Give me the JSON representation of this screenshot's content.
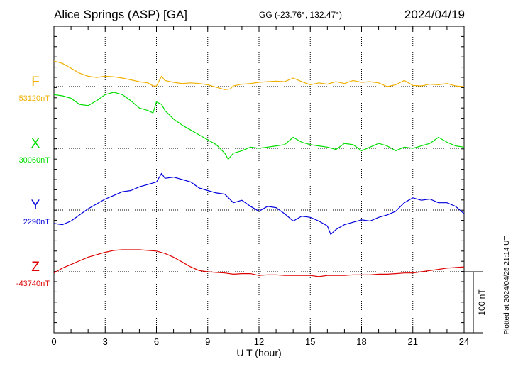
{
  "header": {
    "station": "Alice Springs (ASP)  [GA]",
    "coords": "GG (-23.76°, 132.47°)",
    "date": "2024/04/19"
  },
  "footer_note": "Plotted at 2024/04/25 21:14 UT",
  "scale_label": "100 nT",
  "chart_data": {
    "type": "line",
    "xlabel": "U T (hour)",
    "ylabel": "",
    "title": "",
    "xlim": [
      0,
      24
    ],
    "x_ticks": [
      "0",
      "3",
      "6",
      "9",
      "12",
      "15",
      "18",
      "21",
      "24"
    ],
    "grid": true,
    "scale_bar_nT": 100,
    "series": [
      {
        "name": "F",
        "baseline_label": "53120nT",
        "color": "#f0b000",
        "x": [
          0,
          0.5,
          1,
          1.5,
          2,
          2.5,
          3,
          3.5,
          4,
          4.5,
          5,
          5.5,
          5.8,
          6,
          6.3,
          6.5,
          7,
          7.5,
          8,
          8.5,
          9,
          9.5,
          10,
          10.3,
          10.5,
          11,
          11.5,
          12,
          12.5,
          13,
          13.5,
          14,
          14.5,
          15,
          15.5,
          16,
          16.5,
          17,
          17.5,
          18,
          18.5,
          19,
          19.5,
          20,
          20.5,
          21,
          21.5,
          22,
          22.5,
          23,
          23.5,
          24
        ],
        "values": [
          42,
          38,
          30,
          22,
          17,
          15,
          17,
          16,
          14,
          11,
          8,
          6,
          1,
          1,
          17,
          10,
          7,
          5,
          6,
          5,
          3,
          -1,
          -5,
          -4,
          1,
          4,
          5,
          7,
          8,
          9,
          8,
          14,
          8,
          3,
          6,
          4,
          8,
          5,
          10,
          7,
          8,
          6,
          0,
          3,
          10,
          2,
          1,
          4,
          3,
          5,
          1,
          0
        ]
      },
      {
        "name": "X",
        "baseline_label": "30060nT",
        "color": "#00dd00",
        "x": [
          0,
          0.5,
          1,
          1.5,
          2,
          2.5,
          3,
          3.5,
          4,
          4.5,
          5,
          5.5,
          5.8,
          6,
          6.3,
          6.5,
          7,
          7.5,
          8,
          8.5,
          9,
          9.5,
          10,
          10.2,
          10.5,
          11,
          11.5,
          12,
          12.5,
          13,
          13.5,
          14,
          14.5,
          15,
          15.5,
          16,
          16.5,
          17,
          17.5,
          18,
          18.5,
          19,
          19.5,
          20,
          20.5,
          21,
          21.5,
          22,
          22.5,
          23,
          23.5,
          24
        ],
        "values": [
          88,
          86,
          82,
          72,
          70,
          78,
          88,
          92,
          88,
          78,
          66,
          62,
          58,
          76,
          72,
          62,
          48,
          38,
          30,
          22,
          14,
          6,
          -8,
          -18,
          -8,
          -4,
          2,
          0,
          2,
          4,
          6,
          18,
          10,
          6,
          4,
          2,
          -2,
          8,
          6,
          -4,
          2,
          8,
          4,
          -4,
          2,
          0,
          4,
          8,
          18,
          10,
          4,
          2
        ]
      },
      {
        "name": "Y",
        "baseline_label": "2290nT",
        "color": "#0000dd",
        "x": [
          0,
          0.5,
          1,
          1.5,
          2,
          2.5,
          3,
          3.5,
          4,
          4.5,
          5,
          5.5,
          6,
          6.3,
          6.5,
          7,
          7.5,
          8,
          8.5,
          9,
          9.5,
          10,
          10.5,
          11,
          11.5,
          12,
          12.5,
          13,
          13.5,
          14,
          14.5,
          15,
          15.5,
          16,
          16.2,
          16.5,
          17,
          17.5,
          18,
          18.5,
          19,
          19.5,
          20,
          20.5,
          21,
          21.5,
          22,
          22.5,
          23,
          23.5,
          24
        ],
        "values": [
          -22,
          -24,
          -18,
          -8,
          2,
          10,
          18,
          24,
          30,
          32,
          38,
          42,
          46,
          60,
          52,
          54,
          50,
          46,
          36,
          32,
          28,
          26,
          12,
          16,
          6,
          -2,
          6,
          4,
          -6,
          -18,
          -10,
          -12,
          -18,
          -26,
          -40,
          -32,
          -24,
          -20,
          -16,
          -18,
          -12,
          -8,
          -2,
          12,
          20,
          16,
          18,
          12,
          12,
          6,
          -6
        ]
      },
      {
        "name": "Z",
        "baseline_label": "-43740nT",
        "color": "#dd0000",
        "x": [
          0,
          0.5,
          1,
          1.5,
          2,
          2.5,
          3,
          3.5,
          4,
          4.5,
          5,
          5.5,
          6,
          6.5,
          7,
          7.5,
          8,
          8.5,
          9,
          9.5,
          10,
          10.5,
          11,
          11.5,
          12,
          12.5,
          13,
          13.5,
          14,
          14.5,
          15,
          15.5,
          16,
          16.5,
          17,
          17.5,
          18,
          18.5,
          19,
          19.5,
          20,
          20.5,
          21,
          21.5,
          22,
          22.5,
          23,
          23.5,
          24
        ],
        "values": [
          -2,
          6,
          12,
          18,
          24,
          28,
          32,
          35,
          36,
          36,
          36,
          35,
          34,
          30,
          24,
          16,
          8,
          2,
          0,
          -1,
          -2,
          -4,
          -3,
          -3,
          -6,
          -5,
          -5,
          -6,
          -6,
          -6,
          -6,
          -8,
          -6,
          -6,
          -6,
          -5,
          -5,
          -5,
          -4,
          -4,
          -3,
          -2,
          -2,
          0,
          2,
          4,
          6,
          7,
          8
        ]
      }
    ]
  }
}
